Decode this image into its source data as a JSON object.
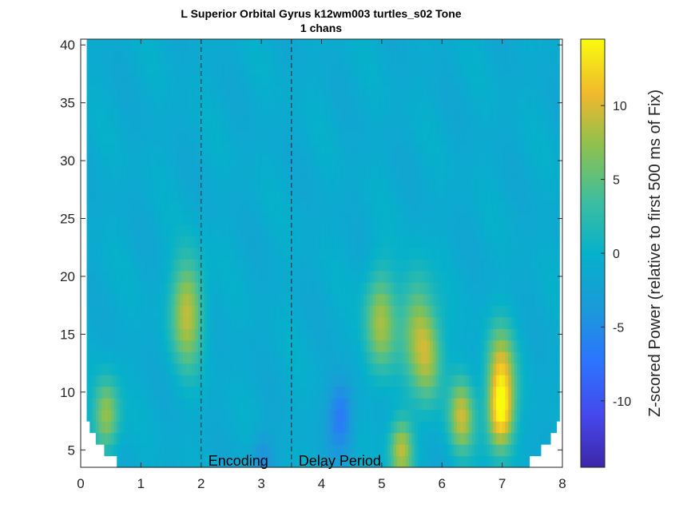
{
  "chart_data": {
    "type": "heatmap",
    "title": "L Superior Orbital Gyrus k12wm003 turtles_s02 Tone",
    "subtitle": "1 chans",
    "xlabel": "",
    "ylabel": "",
    "xlim": [
      0,
      8
    ],
    "ylim": [
      3.5,
      40.5
    ],
    "x_ticks": [
      0,
      1,
      2,
      3,
      4,
      5,
      6,
      7,
      8
    ],
    "y_ticks": [
      5,
      10,
      15,
      20,
      25,
      30,
      35,
      40
    ],
    "colorbar": {
      "label": "Z-scored Power (relative to first 500 ms of Fix)",
      "range": [
        -14.5,
        14.5
      ],
      "ticks": [
        -10,
        -5,
        0,
        5,
        10
      ],
      "colormap": "parula"
    },
    "event_lines": [
      {
        "x": 2.0,
        "label": "Encoding"
      },
      {
        "x": 3.5,
        "label": "Delay Period"
      }
    ],
    "time_range": [
      0.1,
      7.9
    ],
    "freq_range": [
      4,
      40
    ],
    "hot_spots": [
      {
        "t": 1.75,
        "f": 17,
        "z": 10
      },
      {
        "t": 4.95,
        "f": 16,
        "z": 9
      },
      {
        "t": 5.55,
        "f": 16,
        "z": 7
      },
      {
        "t": 5.75,
        "f": 13,
        "z": 8
      },
      {
        "t": 6.95,
        "f": 12,
        "z": 10
      },
      {
        "t": 6.95,
        "f": 8,
        "z": 13
      },
      {
        "t": 6.3,
        "f": 8,
        "z": 10
      },
      {
        "t": 5.3,
        "f": 5,
        "z": 10
      },
      {
        "t": 0.4,
        "f": 8,
        "z": 9
      },
      {
        "t": 4.3,
        "f": 8,
        "z": -6
      },
      {
        "t": 3.0,
        "f": 4,
        "z": -4
      }
    ]
  }
}
